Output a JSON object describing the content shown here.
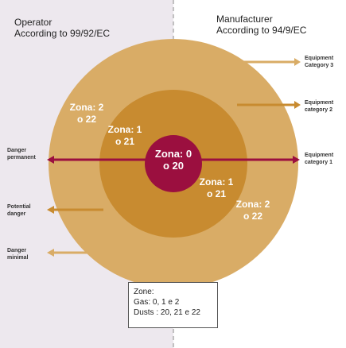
{
  "header": {
    "operator_title": "Operator",
    "operator_sub": "According to 99/92/EC",
    "manufacturer_title": "Manufacturer",
    "manufacturer_sub": "According to 94/9/EC"
  },
  "zones": {
    "outer_left": "Zona: 2 o 22",
    "middle_left": "Zona: 1 o 21",
    "center": "Zona: 0 o 20",
    "middle_right": "Zona: 1 o 21",
    "outer_right": "Zona: 2 o 22"
  },
  "left_labels": {
    "permanent": "Danger permanent",
    "potential": "Potential danger",
    "minimal": "Danger minimal"
  },
  "right_labels": {
    "cat3": "Equipment Category 3",
    "cat2": "Equipment category 2",
    "cat1": "Equipment category 1"
  },
  "legend": {
    "line1": "Zone:",
    "line2": "Gas: 0, 1 e 2",
    "line3": "Dusts  : 20, 21 e 22"
  },
  "colors": {
    "left_bg": "#ede8ee",
    "outer_ring": "#d9ac66",
    "middle_ring": "#c88b30",
    "core": "#9b0f3f",
    "arrow_light": "#d9ac66",
    "arrow_mid": "#c88b30",
    "arrow_dark": "#9b0f3f"
  }
}
